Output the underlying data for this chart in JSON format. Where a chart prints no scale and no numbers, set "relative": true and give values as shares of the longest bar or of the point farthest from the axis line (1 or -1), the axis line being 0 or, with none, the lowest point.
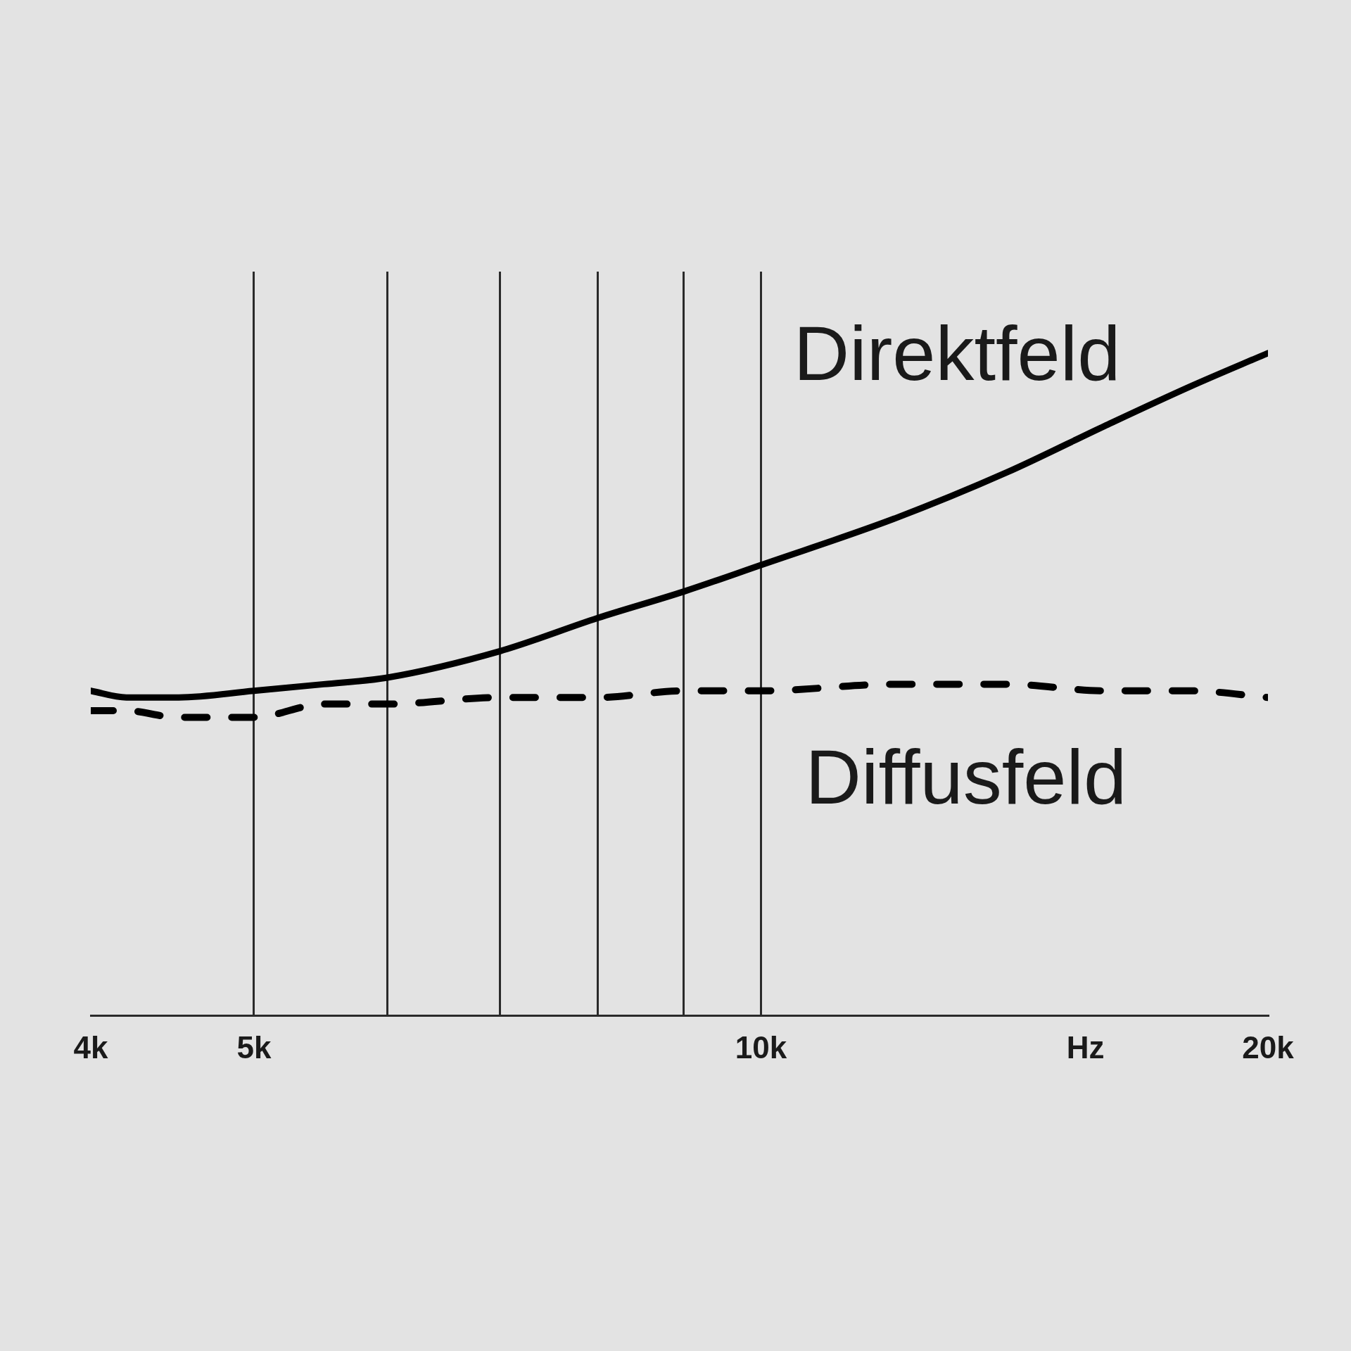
{
  "chart_data": {
    "type": "line",
    "relative": true,
    "log": "x",
    "xlabel": "Hz",
    "x": [
      4000,
      4200,
      4500,
      5000,
      5500,
      6000,
      7000,
      8000,
      9000,
      10000,
      12000,
      14000,
      16000,
      18000,
      20000
    ],
    "xlim": [
      4000,
      20000
    ],
    "xticks": [
      {
        "value": 4000,
        "label": "4k"
      },
      {
        "value": 5000,
        "label": "5k"
      },
      {
        "value": 6000,
        "label": null
      },
      {
        "value": 7000,
        "label": null
      },
      {
        "value": 8000,
        "label": null
      },
      {
        "value": 9000,
        "label": null
      },
      {
        "value": 10000,
        "label": "10k"
      },
      {
        "value": 20000,
        "label": "20k"
      }
    ],
    "series": [
      {
        "name": "Direktfeld",
        "color": "#000000",
        "line_style": "solid",
        "values": [
          0.49,
          0.48,
          0.48,
          0.49,
          0.5,
          0.51,
          0.55,
          0.6,
          0.64,
          0.68,
          0.75,
          0.82,
          0.89,
          0.95,
          1
        ]
      },
      {
        "name": "Diffusfeld",
        "color": "#000000",
        "line_style": "dashed",
        "values": [
          0.46,
          0.46,
          0.45,
          0.45,
          0.47,
          0.47,
          0.48,
          0.48,
          0.49,
          0.49,
          0.5,
          0.5,
          0.49,
          0.49,
          0.48
        ]
      }
    ],
    "grid": "x",
    "legend": false
  }
}
